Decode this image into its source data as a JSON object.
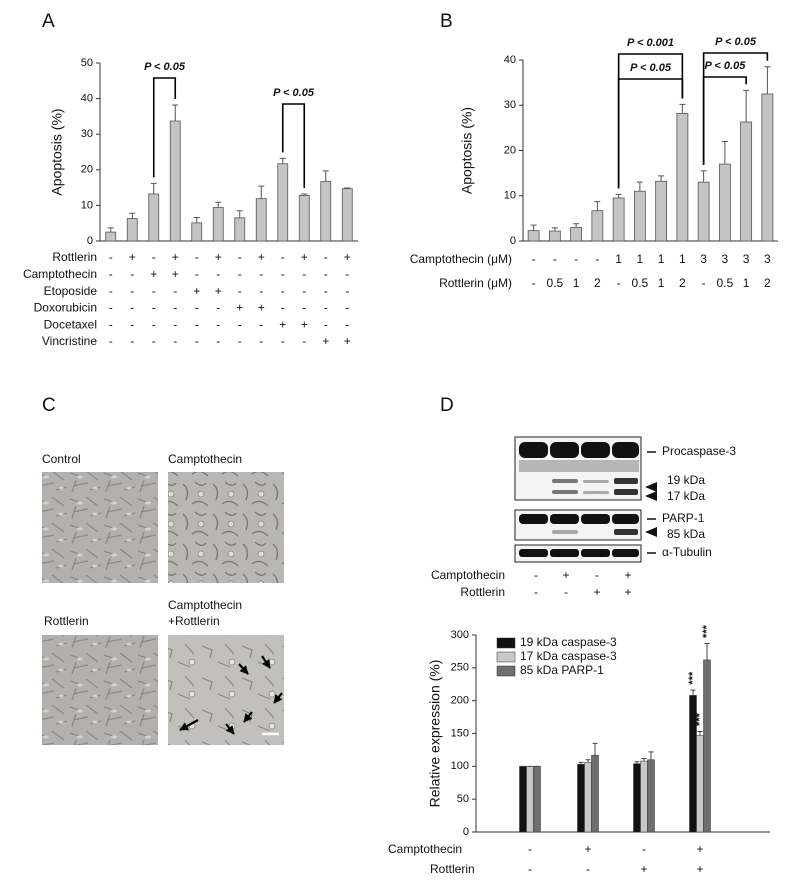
{
  "panel_labels": [
    "A",
    "B",
    "C",
    "D"
  ],
  "chart_data": [
    {
      "type": "bar",
      "ylabel": "Apoptosis (%)",
      "ylim": [
        0,
        50
      ],
      "yticks": [
        0,
        10,
        20,
        30,
        40,
        50
      ],
      "color": "#c4c4c4",
      "values": [
        2.5,
        6.3,
        13.2,
        33.7,
        5.1,
        9.4,
        6.5,
        11.9,
        21.7,
        12.8,
        16.7,
        14.7
      ],
      "errors": [
        1.2,
        1.5,
        3.0,
        4.5,
        1.5,
        1.5,
        2.0,
        3.5,
        1.5,
        0.4,
        3.0,
        0.2
      ],
      "conditions": [
        {
          "name": "Rottlerin",
          "signs": [
            "-",
            "+",
            "-",
            "+",
            "-",
            "+",
            "-",
            "+",
            "-",
            "+",
            "-",
            "+"
          ]
        },
        {
          "name": "Camptothecin",
          "signs": [
            "-",
            "-",
            "+",
            "+",
            "-",
            "-",
            "-",
            "-",
            "-",
            "-",
            "-",
            "-"
          ]
        },
        {
          "name": "Etoposide",
          "signs": [
            "-",
            "-",
            "-",
            "-",
            "+",
            "+",
            "-",
            "-",
            "-",
            "-",
            "-",
            "-"
          ]
        },
        {
          "name": "Doxorubicin",
          "signs": [
            "-",
            "-",
            "-",
            "-",
            "-",
            "-",
            "+",
            "+",
            "-",
            "-",
            "-",
            "-"
          ]
        },
        {
          "name": "Docetaxel",
          "signs": [
            "-",
            "-",
            "-",
            "-",
            "-",
            "-",
            "-",
            "-",
            "+",
            "+",
            "-",
            "-"
          ]
        },
        {
          "name": "Vincristine",
          "signs": [
            "-",
            "-",
            "-",
            "-",
            "-",
            "-",
            "-",
            "-",
            "-",
            "-",
            "+",
            "+"
          ]
        }
      ],
      "annotations": [
        "P < 0.05",
        "P < 0.05"
      ]
    },
    {
      "type": "bar",
      "ylabel": "Apoptosis (%)",
      "ylim": [
        0,
        40
      ],
      "yticks": [
        0,
        10,
        20,
        30,
        40
      ],
      "color": "#c4c4c4",
      "values": [
        2.3,
        2.2,
        3.0,
        6.7,
        9.5,
        11.0,
        13.2,
        28.2,
        13.0,
        17.0,
        26.3,
        32.5
      ],
      "errors": [
        1.2,
        0.7,
        0.8,
        2.0,
        0.8,
        2.0,
        1.2,
        2.0,
        2.5,
        5.0,
        7.0,
        6.0
      ],
      "conditions": [
        {
          "name": "Camptothecin (μM)",
          "signs": [
            "-",
            "-",
            "-",
            "-",
            "1",
            "1",
            "1",
            "1",
            "3",
            "3",
            "3",
            "3"
          ]
        },
        {
          "name": "Rottlerin (μM)",
          "signs": [
            "-",
            "0.5",
            "1",
            "2",
            "-",
            "0.5",
            "1",
            "2",
            "-",
            "0.5",
            "1",
            "2"
          ]
        }
      ],
      "annotations": [
        "P < 0.001",
        "P < 0.05",
        "P < 0.05",
        "P < 0.05"
      ]
    },
    {
      "type": "grouped-bar",
      "ylabel": "Relative expression (%)",
      "ylim": [
        0,
        300
      ],
      "yticks": [
        0,
        50,
        100,
        150,
        200,
        250,
        300
      ],
      "series": [
        {
          "name": "19 kDa caspase-3",
          "color": "#111111",
          "values": [
            100,
            103,
            104,
            208
          ],
          "errors": [
            0,
            3,
            3,
            8
          ]
        },
        {
          "name": "17 kDa caspase-3",
          "color": "#c8c8c8",
          "values": [
            100,
            106,
            108,
            147
          ],
          "errors": [
            0,
            4,
            4,
            6
          ]
        },
        {
          "name": "85 kDa PARP-1",
          "color": "#6e6e6e",
          "values": [
            100,
            117,
            110,
            262
          ],
          "errors": [
            0,
            18,
            12,
            25
          ]
        }
      ],
      "conditions": [
        {
          "name": "Camptothecin",
          "signs": [
            "-",
            "+",
            "-",
            "+"
          ]
        },
        {
          "name": "Rottlerin",
          "signs": [
            "-",
            "-",
            "+",
            "+"
          ]
        }
      ],
      "annotations": [
        "***",
        "***",
        "***"
      ]
    }
  ],
  "micrographs": [
    [
      "Control"
    ],
    [
      "Camptothecin"
    ],
    [
      "Rottlerin"
    ],
    [
      "Camptothecin",
      "+Rottlerin"
    ]
  ],
  "blot": {
    "bands": [
      "Procaspase-3",
      "19 kDa",
      "17 kDa",
      "PARP-1",
      "85 kDa",
      "α-Tubulin"
    ],
    "conditions": [
      {
        "name": "Camptothecin",
        "signs": [
          "-",
          "+",
          "-",
          "+"
        ]
      },
      {
        "name": "Rottlerin",
        "signs": [
          "-",
          "-",
          "+",
          "+"
        ]
      }
    ]
  }
}
